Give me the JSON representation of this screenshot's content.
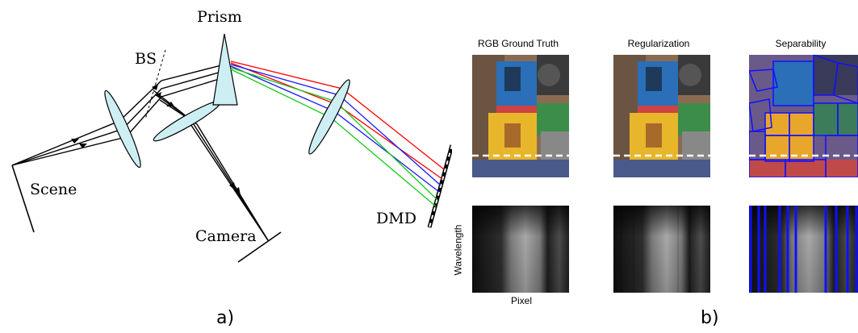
{
  "figure": {
    "panel_a": {
      "labels": {
        "prism": "Prism",
        "bs": "BS",
        "scene": "Scene",
        "camera": "Camera",
        "dmd": "DMD"
      },
      "caption": "a)",
      "colors": {
        "prism_fill": "#cdeff4",
        "lens_fill": "#cdeff4",
        "ray_red": "#ff0000",
        "ray_blue": "#1a1aff",
        "ray_green": "#19c819"
      }
    },
    "panel_b": {
      "column_titles": [
        "RGB Ground Truth",
        "Regularization",
        "Separability"
      ],
      "axis_y": "Wavelength",
      "axis_x": "Pixel",
      "caption": "b)",
      "colors": {
        "dashed_line": "#ffffff",
        "superpixel_outline": "#1010ff"
      }
    }
  }
}
